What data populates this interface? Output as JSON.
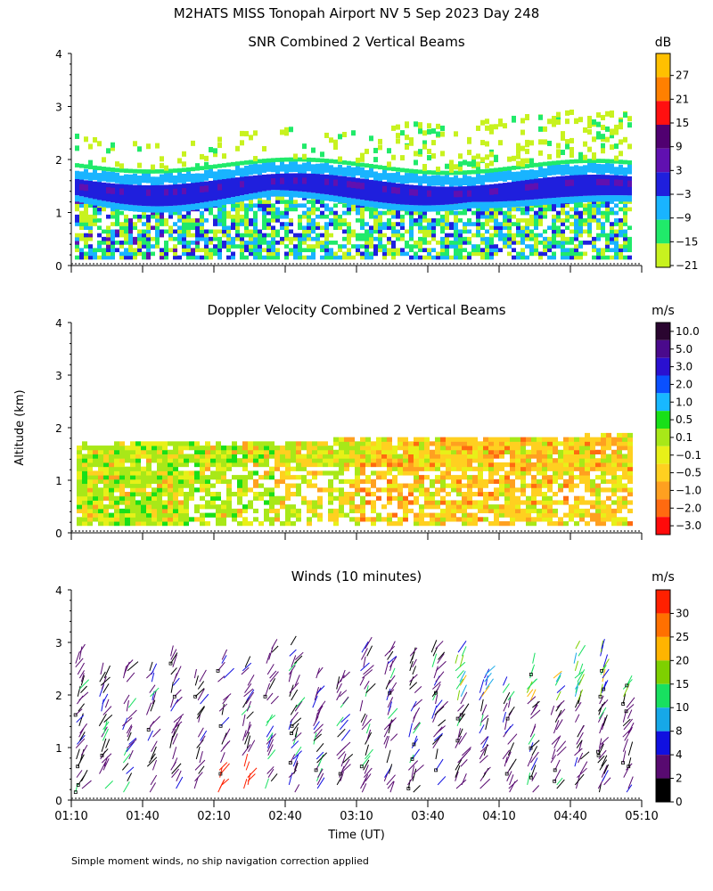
{
  "title": "M2HATS MISS Tonopah Airport NV   5 Sep 2023 Day 248",
  "shared_ylabel": "Altitude (km)",
  "footer_note": "Simple moment winds, no ship navigation correction applied",
  "chart_data": [
    {
      "type": "heatmap",
      "title": "SNR Combined 2 Vertical Beams",
      "ylim": [
        0,
        4
      ],
      "yticks": [
        "0",
        "1",
        "2",
        "3",
        "4"
      ],
      "colorbar": {
        "unit": "dB",
        "labels": [
          "27",
          "21",
          "15",
          "9",
          "3",
          "−3",
          "−9",
          "−15",
          "−21"
        ],
        "colors": [
          "#ffc000",
          "#ff8000",
          "#ff1010",
          "#500070",
          "#6010b0",
          "#1f1fdd",
          "#19b4ff",
          "#20ea6a",
          "#c8f21f"
        ]
      },
      "layers": [
        {
          "name": "sparse cloud echoes",
          "bottom_km": 1.7,
          "top_km": 2.4,
          "color": "#c8f21f"
        },
        {
          "name": "moderate echo band",
          "bottom_km": 1.3,
          "top_km": 1.85,
          "color": "#19b4ff"
        },
        {
          "name": "strong echo band",
          "bottom_km": 1.2,
          "top_km": 1.65,
          "color": "#1f1fdd"
        },
        {
          "name": "boundary layer mixed",
          "bottom_km": 0.1,
          "top_km": 1.3,
          "color": "#20ea6a"
        }
      ]
    },
    {
      "type": "heatmap",
      "title": "Doppler Velocity Combined 2 Vertical Beams",
      "ylim": [
        0,
        4
      ],
      "yticks": [
        "0",
        "1",
        "2",
        "3",
        "4"
      ],
      "colorbar": {
        "unit": "m/s",
        "labels": [
          "10.0",
          "5.0",
          "3.0",
          "2.0",
          "1.0",
          "0.5",
          "0.1",
          "−0.1",
          "−0.5",
          "−1.0",
          "−2.0",
          "−3.0"
        ],
        "colors": [
          "#2a0530",
          "#4a0a8c",
          "#2a10d0",
          "#0a50ff",
          "#18b8ff",
          "#18e018",
          "#a8e818",
          "#e8f018",
          "#ffd020",
          "#ffa020",
          "#ff6a10",
          "#ff0a0a"
        ]
      },
      "layers": [
        {
          "name": "early period updrafts",
          "start": "01:10",
          "end": "02:20",
          "bottom_km": 0.15,
          "top_km": 1.7,
          "color": "#a8e818"
        },
        {
          "name": "later period downdrafts",
          "start": "03:00",
          "end": "05:08",
          "bottom_km": 0.15,
          "top_km": 2.1,
          "color": "#ffa020"
        }
      ]
    },
    {
      "type": "scatter",
      "title": "Winds (10 minutes)",
      "ylim": [
        0,
        4
      ],
      "yticks": [
        "0",
        "1",
        "2",
        "3",
        "4"
      ],
      "colorbar": {
        "unit": "m/s",
        "labels": [
          "30",
          "25",
          "20",
          "15",
          "10",
          "8",
          "4",
          "2",
          "0"
        ],
        "colors": [
          "#ff2000",
          "#ff7000",
          "#ffb400",
          "#7ed000",
          "#18e060",
          "#16a8e8",
          "#1010e0",
          "#580a70",
          "#000000"
        ]
      },
      "wind_profiles": {
        "interval_min": 10,
        "typical_speed_ms": [
          4,
          8
        ],
        "upper_level_speed_ms": [
          10,
          20
        ],
        "low_level_peak_speed_ms": 30,
        "top_km": 2.9
      }
    }
  ],
  "x_axis": {
    "xlabel": "Time (UT)",
    "range": [
      "01:10",
      "05:10"
    ],
    "ticks": [
      "01:10",
      "01:40",
      "02:10",
      "02:40",
      "03:10",
      "03:40",
      "04:10",
      "04:40",
      "05:10"
    ]
  }
}
